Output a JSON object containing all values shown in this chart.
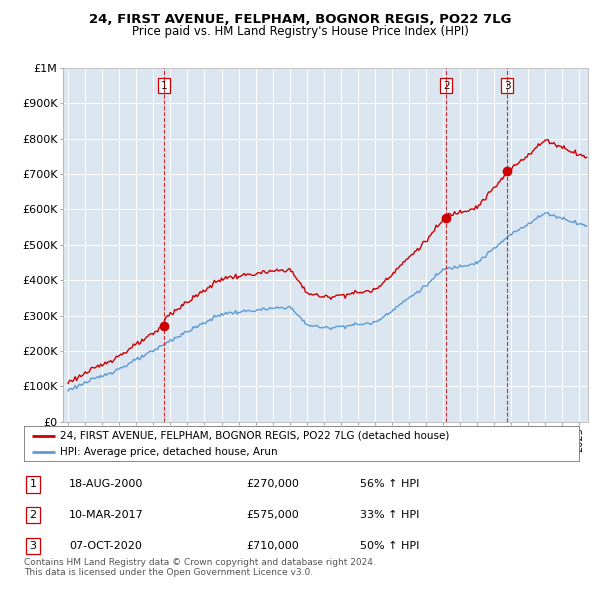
{
  "title": "24, FIRST AVENUE, FELPHAM, BOGNOR REGIS, PO22 7LG",
  "subtitle": "Price paid vs. HM Land Registry's House Price Index (HPI)",
  "hpi_color": "#5b9bd5",
  "price_color": "#cc0000",
  "vline_color": "#cc0000",
  "bg_color": "#ffffff",
  "chart_bg_color": "#dce6f1",
  "grid_color": "#ffffff",
  "sales": [
    {
      "date_num": 2000.627,
      "price": 270000,
      "label": "1"
    },
    {
      "date_num": 2017.19,
      "price": 575000,
      "label": "2"
    },
    {
      "date_num": 2020.77,
      "price": 710000,
      "label": "3"
    }
  ],
  "legend_entries": [
    "24, FIRST AVENUE, FELPHAM, BOGNOR REGIS, PO22 7LG (detached house)",
    "HPI: Average price, detached house, Arun"
  ],
  "table_rows": [
    {
      "num": "1",
      "date": "18-AUG-2000",
      "price": "£270,000",
      "change": "56% ↑ HPI"
    },
    {
      "num": "2",
      "date": "10-MAR-2017",
      "price": "£575,000",
      "change": "33% ↑ HPI"
    },
    {
      "num": "3",
      "date": "07-OCT-2020",
      "price": "£710,000",
      "change": "50% ↑ HPI"
    }
  ],
  "footer": "Contains HM Land Registry data © Crown copyright and database right 2024.\nThis data is licensed under the Open Government Licence v3.0.",
  "ylim": [
    0,
    1000000
  ],
  "xlim_start": 1994.7,
  "xlim_end": 2025.5,
  "yticks": [
    0,
    100000,
    200000,
    300000,
    400000,
    500000,
    600000,
    700000,
    800000,
    900000,
    1000000
  ],
  "ytick_labels": [
    "£0",
    "£100K",
    "£200K",
    "£300K",
    "£400K",
    "£500K",
    "£600K",
    "£700K",
    "£800K",
    "£900K",
    "£1M"
  ]
}
